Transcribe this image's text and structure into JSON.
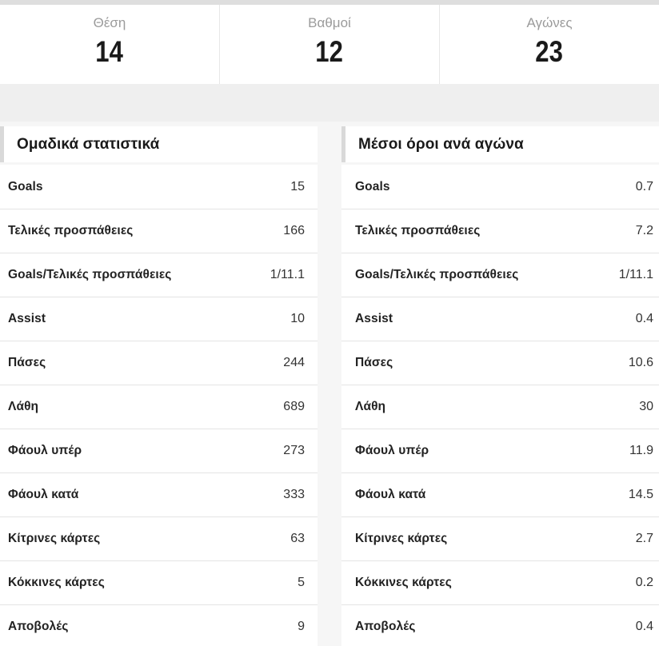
{
  "summary": {
    "items": [
      {
        "label": "Θέση",
        "value": "14"
      },
      {
        "label": "Βαθμοί",
        "value": "12"
      },
      {
        "label": "Αγώνες",
        "value": "23"
      }
    ]
  },
  "tables": [
    {
      "title": "Ομαδικά στατιστικά",
      "rows": [
        {
          "label": "Goals",
          "value": "15"
        },
        {
          "label": "Τελικές προσπάθειες",
          "value": "166"
        },
        {
          "label": "Goals/Τελικές προσπάθειες",
          "value": "1/11.1"
        },
        {
          "label": "Assist",
          "value": "10"
        },
        {
          "label": "Πάσες",
          "value": "244"
        },
        {
          "label": "Λάθη",
          "value": "689"
        },
        {
          "label": "Φάουλ υπέρ",
          "value": "273"
        },
        {
          "label": "Φάουλ κατά",
          "value": "333"
        },
        {
          "label": "Κίτρινες κάρτες",
          "value": "63"
        },
        {
          "label": "Κόκκινες κάρτες",
          "value": "5"
        },
        {
          "label": "Αποβολές",
          "value": "9"
        }
      ]
    },
    {
      "title": "Μέσοι όροι ανά αγώνα",
      "rows": [
        {
          "label": "Goals",
          "value": "0.7"
        },
        {
          "label": "Τελικές προσπάθειες",
          "value": "7.2"
        },
        {
          "label": "Goals/Τελικές προσπάθειες",
          "value": "1/11.1"
        },
        {
          "label": "Assist",
          "value": "0.4"
        },
        {
          "label": "Πάσες",
          "value": "10.6"
        },
        {
          "label": "Λάθη",
          "value": "30"
        },
        {
          "label": "Φάουλ υπέρ",
          "value": "11.9"
        },
        {
          "label": "Φάουλ κατά",
          "value": "14.5"
        },
        {
          "label": "Κίτρινες κάρτες",
          "value": "2.7"
        },
        {
          "label": "Κόκκινες κάρτες",
          "value": "0.2"
        },
        {
          "label": "Αποβολές",
          "value": "0.4"
        }
      ]
    }
  ],
  "colors": {
    "top-strip": "#dedede",
    "band": "#efefef",
    "page-bg": "#f6f6f6",
    "panel-bg": "#ffffff",
    "accent-bar": "#d9d9d9",
    "cell-divider": "#e7e7e7",
    "row-divider": "#e4e4e4",
    "label-muted": "#9b9b9b",
    "text-strong": "#1a1a1a",
    "row-label": "#222222",
    "row-value": "#333333"
  }
}
